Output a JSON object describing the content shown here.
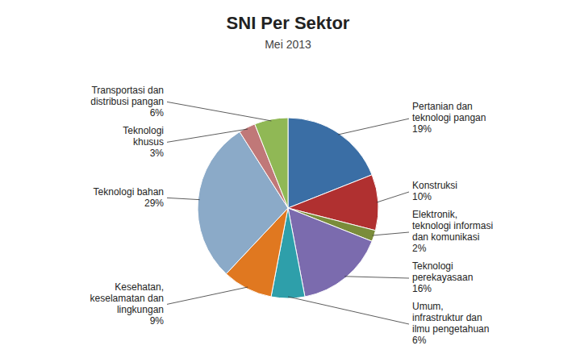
{
  "chart_data": {
    "type": "pie",
    "title": "SNI Per Sektor",
    "subtitle": "Mei 2013",
    "categories": [
      "Pertanian dan\nteknologi pangan",
      "Konstruksi",
      "Elektronik,\nteknologi informasi\ndan komunikasi",
      "Teknologi\nperekayasaan",
      "Umum,\ninfrastruktur dan\nilmu pengetahuan",
      "Kesehatan,\nkeselamatan dan\nlingkungan",
      "Teknologi bahan",
      "Teknologi\nkhusus",
      "Transportasi dan\ndistribusi pangan"
    ],
    "values": [
      19,
      10,
      2,
      16,
      6,
      9,
      29,
      3,
      6
    ],
    "value_labels": [
      "19%",
      "10%",
      "2%",
      "16%",
      "6%",
      "9%",
      "29%",
      "3%",
      "6%"
    ],
    "colors": [
      "#3A6EA5",
      "#B03030",
      "#7A8C3A",
      "#7B6BAE",
      "#2E9FAA",
      "#E07820",
      "#8BAAC8",
      "#C07878",
      "#90B855"
    ]
  }
}
